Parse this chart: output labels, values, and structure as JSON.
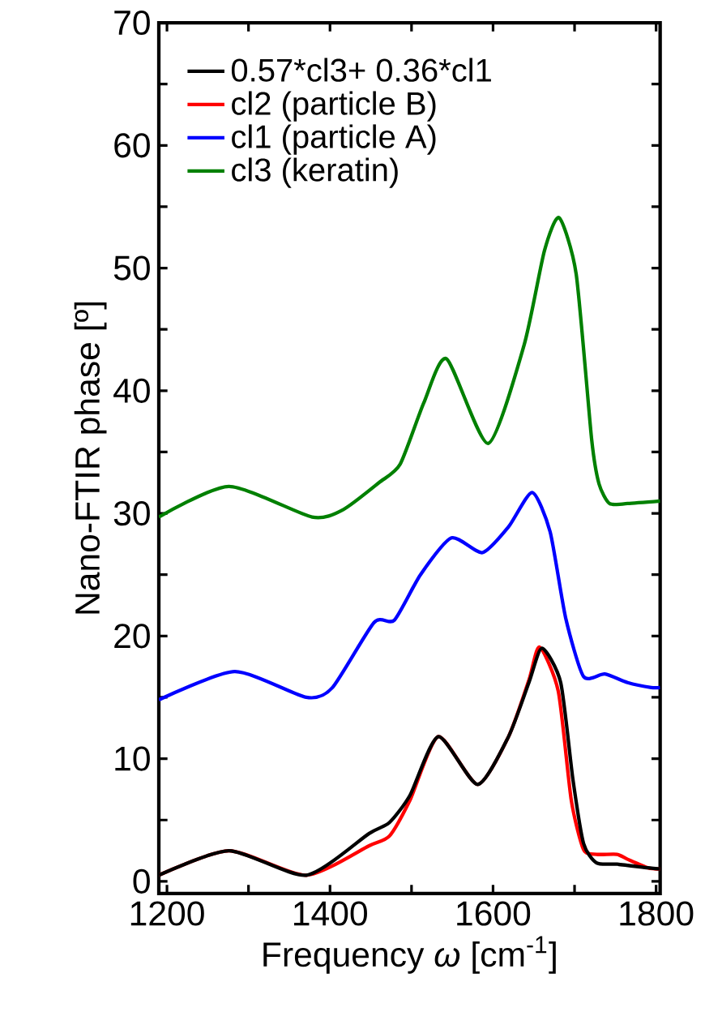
{
  "chart_data": {
    "type": "line",
    "xlabel": "Frequency *ω* [cm$^{-1}$]",
    "ylabel": "Nano-FTIR phase [º]",
    "xlim": [
      1190,
      1805
    ],
    "ylim": [
      -1,
      70
    ],
    "xticks": [
      1200,
      {
        "value": 1300,
        "label": null
      },
      1400,
      {
        "value": 1500,
        "label": null
      },
      1600,
      {
        "value": 1700,
        "label": null
      },
      1800
    ],
    "yticks": [
      0,
      {
        "value": 5,
        "label": null
      },
      10,
      {
        "value": 15,
        "label": null
      },
      20,
      {
        "value": 25,
        "label": null
      },
      30,
      {
        "value": 35,
        "label": null
      },
      40,
      {
        "value": 45,
        "label": null
      },
      50,
      {
        "value": 55,
        "label": null
      },
      60,
      {
        "value": 65,
        "label": null
      },
      70
    ],
    "legend": "top left",
    "grid": false,
    "marker": "none",
    "line_style": "solid",
    "series": [
      {
        "name": "0.57*cl3+ 0.36*cl1",
        "color": "#000000",
        "x": [
          1190,
          1276,
          1371,
          1448,
          1473,
          1498,
          1533,
          1581,
          1619,
          1644,
          1660,
          1683,
          1698,
          1711,
          1727,
          1752,
          1790,
          1805
        ],
        "values": [
          0.5,
          2.5,
          0.5,
          3.9,
          4.8,
          7.0,
          11.8,
          7.9,
          11.8,
          16.2,
          19.0,
          16.2,
          8.3,
          3.1,
          1.5,
          1.4,
          1.1,
          1.0
        ]
      },
      {
        "name": "cl2 (particle B)",
        "color": "#ff0000",
        "x": [
          1190,
          1276,
          1371,
          1448,
          1473,
          1498,
          1533,
          1581,
          1619,
          1644,
          1657,
          1680,
          1696,
          1711,
          1727,
          1752,
          1765,
          1790,
          1805
        ],
        "values": [
          0.5,
          2.5,
          0.5,
          2.9,
          3.7,
          6.6,
          11.8,
          7.9,
          11.8,
          16.4,
          19.1,
          15.5,
          6.6,
          2.6,
          2.2,
          2.2,
          1.8,
          1.1,
          1.0
        ]
      },
      {
        "name": "cl1 (particle A)",
        "color": "#0000ff",
        "x": [
          1190,
          1283,
          1371,
          1403,
          1454,
          1479,
          1511,
          1549,
          1587,
          1619,
          1648,
          1670,
          1689,
          1711,
          1737,
          1765,
          1794,
          1805
        ],
        "values": [
          14.8,
          17.1,
          15.0,
          15.8,
          21.1,
          21.3,
          25.0,
          28.0,
          26.8,
          28.9,
          31.7,
          28.5,
          21.5,
          16.7,
          16.9,
          16.2,
          15.8,
          15.8
        ]
      },
      {
        "name": "cl3 (keratin)",
        "color": "#008000",
        "x": [
          1190,
          1276,
          1378,
          1416,
          1460,
          1486,
          1515,
          1543,
          1594,
          1638,
          1663,
          1681,
          1702,
          1721,
          1730,
          1743,
          1765,
          1805
        ],
        "values": [
          29.7,
          32.2,
          29.7,
          30.3,
          32.5,
          34.0,
          39.0,
          42.6,
          35.7,
          43.7,
          51.4,
          54.1,
          49.5,
          36.0,
          32.4,
          30.8,
          30.8,
          31.0
        ]
      }
    ]
  }
}
